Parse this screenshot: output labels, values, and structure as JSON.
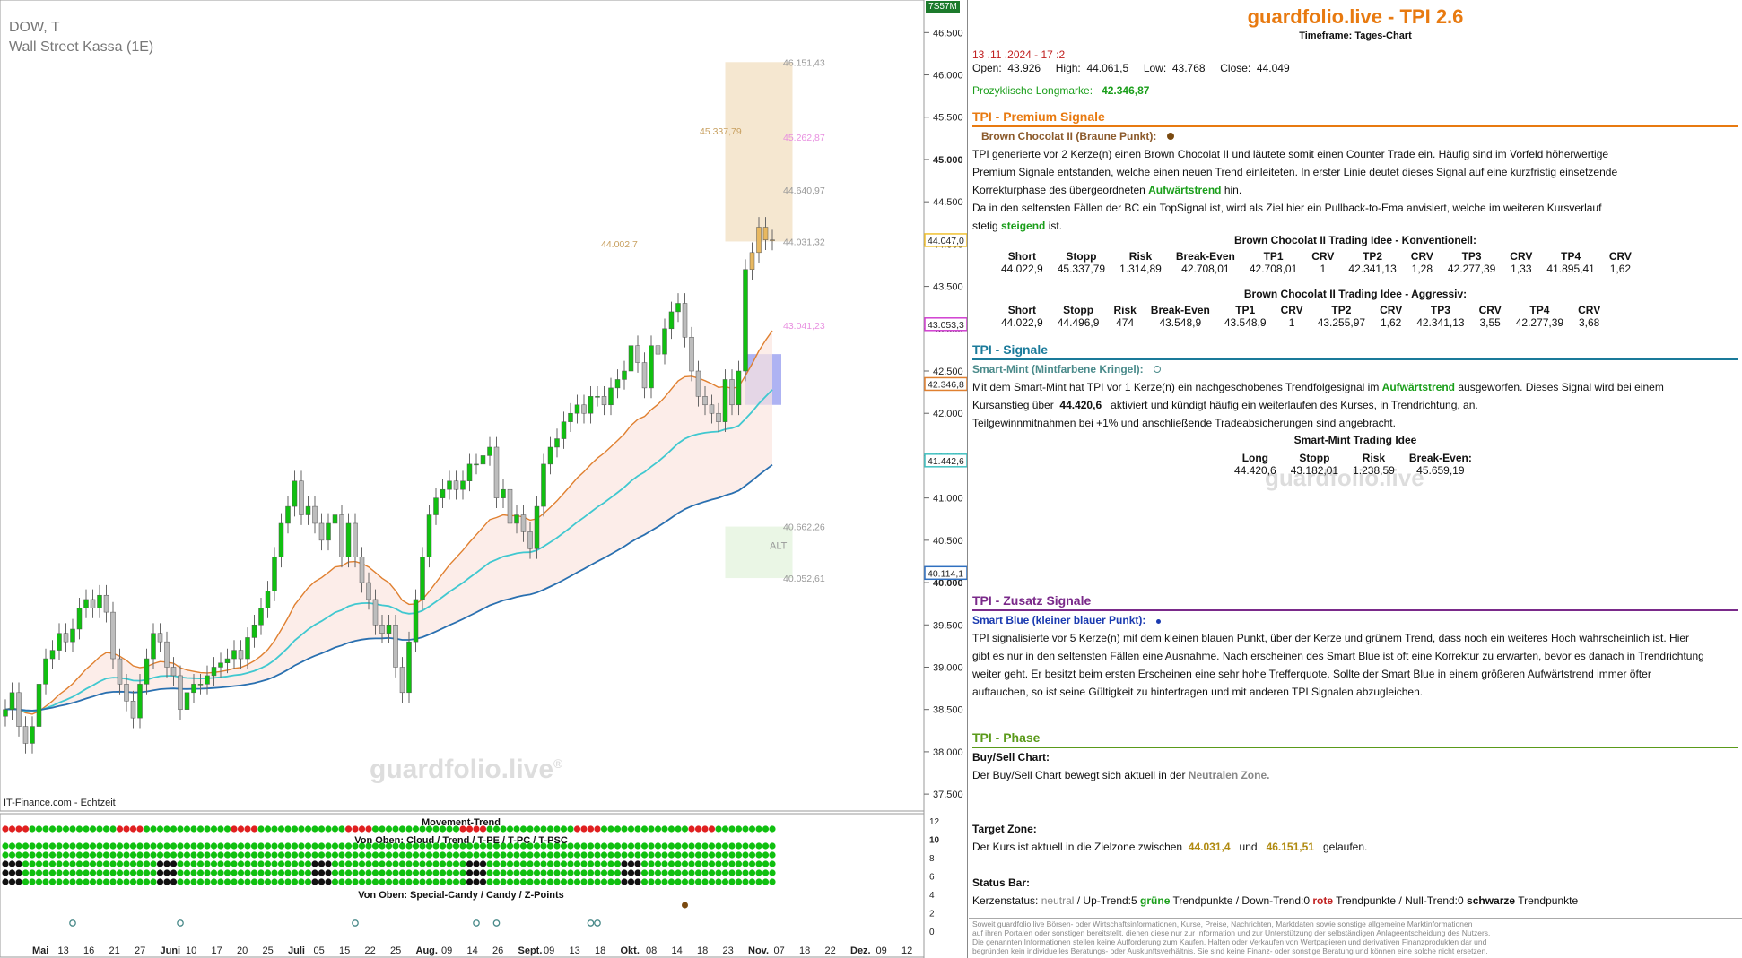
{
  "chart_header": {
    "symbol": "DOW, T",
    "instrument": "Wall Street Kassa (1E)",
    "badge": "7S57M",
    "watermark": "guardfolio.live",
    "watermark_sup": "®",
    "source": "IT-Finance.com - Echtzeit"
  },
  "chart_data": {
    "type": "candlestick",
    "title": "",
    "ylim": [
      37300,
      46800
    ],
    "y_ticks": [
      "46.500",
      "46.000",
      "45.500",
      "45.000",
      "44.500",
      "44.000",
      "43.500",
      "43.000",
      "42.500",
      "42.000",
      "41.500",
      "41.000",
      "40.500",
      "40.000",
      "39.500",
      "39.000",
      "38.500",
      "38.000",
      "37.500"
    ],
    "y_tick_values": [
      46500,
      46000,
      45500,
      45000,
      44500,
      44000,
      43500,
      43000,
      42500,
      42000,
      41500,
      41000,
      40500,
      40000,
      39500,
      39000,
      38500,
      38000,
      37500
    ],
    "x_labels": [
      "Mai",
      "13",
      "16",
      "21",
      "27",
      "Juni",
      "10",
      "17",
      "20",
      "25",
      "Juli",
      "05",
      "15",
      "22",
      "25",
      "Aug.",
      "09",
      "14",
      "26",
      "Sept.",
      "09",
      "13",
      "18",
      "Okt.",
      "08",
      "14",
      "18",
      "23",
      "Nov.",
      "07",
      "18",
      "22",
      "Dez.",
      "09",
      "12"
    ],
    "price_badges": [
      {
        "value": "44.047,0",
        "price": 44047,
        "color": "#f0c030"
      },
      {
        "value": "43.053,3",
        "price": 43053,
        "color": "#d040d0"
      },
      {
        "value": "42.346,8",
        "price": 42347,
        "color": "#e08030"
      },
      {
        "value": "41.442,6",
        "price": 41443,
        "color": "#40c0c0"
      },
      {
        "value": "40.114,1",
        "price": 40114,
        "color": "#3070c0"
      }
    ],
    "annotations": [
      {
        "text": "46.151,43",
        "price": 46151,
        "color": "#999999"
      },
      {
        "text": "45.337,79",
        "price": 45338,
        "color": "#c8a060"
      },
      {
        "text": "45.262,87",
        "price": 45263,
        "color": "#e890e0"
      },
      {
        "text": "44.640,97",
        "price": 44641,
        "color": "#999999"
      },
      {
        "text": "44.002,7",
        "price": 44003,
        "color": "#c8a060"
      },
      {
        "text": "44.031,32",
        "price": 44031,
        "color": "#999999"
      },
      {
        "text": "43.041,23",
        "price": 43041,
        "color": "#e890e0"
      },
      {
        "text": "40.662,26",
        "price": 40662,
        "color": "#999999"
      },
      {
        "text": "40.052,61",
        "price": 40053,
        "color": "#999999"
      }
    ],
    "zone_label": "ALT",
    "series": [
      {
        "name": "close",
        "values": [
          38500,
          38700,
          38300,
          38100,
          38300,
          38800,
          39100,
          39200,
          39400,
          39300,
          39450,
          39700,
          39800,
          39700,
          39850,
          39650,
          39100,
          38800,
          38600,
          38400,
          38800,
          39100,
          39400,
          39300,
          39000,
          38900,
          38500,
          38700,
          38800,
          38800,
          38900,
          39000,
          39050,
          39100,
          39200,
          39100,
          39350,
          39500,
          39700,
          39900,
          40300,
          40700,
          40900,
          41200,
          40800,
          40900,
          40700,
          40500,
          40700,
          40800,
          40300,
          40700,
          40300,
          40000,
          39800,
          39500,
          39400,
          39500,
          39000,
          38700,
          39300,
          39800,
          40300,
          40800,
          41000,
          41100,
          41200,
          41100,
          41200,
          41400,
          41400,
          41500,
          41600,
          41000,
          41100,
          40700,
          40800,
          40600,
          40400,
          40900,
          41400,
          41600,
          41700,
          41900,
          42000,
          42100,
          42000,
          42200,
          42200,
          42100,
          42300,
          42400,
          42500,
          42800,
          42600,
          42300,
          42800,
          42700,
          43000,
          43200,
          43300,
          42900,
          42500,
          42200,
          42100,
          42000,
          41900,
          42400,
          42100,
          42500,
          43700,
          43900,
          44200,
          44050,
          44047
        ]
      }
    ]
  },
  "indicators": {
    "movement_trend": "Movement-Trend",
    "cloud_row": "Von Oben: Cloud / Trend / T-PE / T-PC / T-PSC",
    "special_row": "Von Oben: Special-Candy / Candy / Z-Points",
    "right_ticks": [
      "12",
      "10",
      "8",
      "6",
      "4",
      "2",
      "0"
    ],
    "right_tick_values": [
      12,
      10,
      8,
      6,
      4,
      2,
      0
    ]
  },
  "info": {
    "title": "guardfolio.live - TPI 2.6",
    "timeframe": "Timeframe: Tages-Chart",
    "datetime": "13 .11 .2024 - 17 :2",
    "ohlc": {
      "open_label": "Open:",
      "open": "43.926",
      "high_label": "High:",
      "high": "44.061,5",
      "low_label": "Low:",
      "low": "43.768",
      "close_label": "Close:",
      "close": "44.049"
    },
    "longmark_label": "Prozyklische Longmarke:",
    "longmark_value": "42.346,87",
    "premium": {
      "head": "TPI - Premium Signale",
      "sub": "Brown Chocolat II (Braune Punkt):",
      "p1a": "TPI generierte vor 2  Kerze(n) einen Brown Chocolat II und läutete somit einen Counter Trade ein. Häufig sind im Vorfeld höherwertige",
      "p1b": "Premium Signale entstanden, welche einen neuen Trend einleiteten. In erster Linie deutet dieses Signal auf eine kurzfristig einsetzende",
      "p1c_pre": "Korrekturphase des übergeordneten",
      "p1c_em": "Aufwärtstrend",
      "p1c_post": "hin.",
      "p1d": "Da in den seltensten Fällen der BC ein TopSignal ist, wird als Ziel hier ein Pullback-to-Ema anvisiert, welche im weiteren Kursverlauf",
      "p1e_pre": "stetig",
      "p1e_em": "steigend",
      "p1e_post": "ist.",
      "t1_title": "Brown Chocolat II Trading Idee - Konventionell:",
      "t2_title": "Brown Chocolat II Trading Idee - Aggressiv:",
      "cols": [
        "Short",
        "Stopp",
        "Risk",
        "Break-Even",
        "TP1",
        "CRV",
        "TP2",
        "CRV",
        "TP3",
        "CRV",
        "TP4",
        "CRV"
      ],
      "t1_vals": [
        "44.022,9",
        "45.337,79",
        "1.314,89",
        "42.708,01",
        "42.708,01",
        "1",
        "42.341,13",
        "1,28",
        "42.277,39",
        "1,33",
        "41.895,41",
        "1,62"
      ],
      "t2_vals": [
        "44.022,9",
        "44.496,9",
        "474",
        "43.548,9",
        "43.548,9",
        "1",
        "43.255,97",
        "1,62",
        "42.341,13",
        "3,55",
        "42.277,39",
        "3,68"
      ]
    },
    "signale": {
      "head": "TPI - Signale",
      "sub": "Smart-Mint (Mintfarbene Kringel):",
      "p1_pre": "Mit dem Smart-Mint hat TPI vor 1  Kerze(n) ein nachgeschobenes Trendfolgesignal im",
      "p1_em": "Aufwärtstrend",
      "p1_post": "ausgeworfen. Dieses Signal wird bei einem",
      "p2_pre": "Kursanstieg über",
      "p2_val": "44.420,6",
      "p2_post": "aktiviert und kündigt häufig ein weiterlaufen des Kurses, in Trendrichtung, an.",
      "p3": "Teilgewinnmitnahmen bei +1% und anschließende Tradeabsicherungen sind angebracht.",
      "t_title": "Smart-Mint Trading Idee",
      "cols": [
        "Long",
        "Stopp",
        "Risk",
        "Break-Even:"
      ],
      "vals": [
        "44.420,6",
        "43.182,01",
        "1.238,59",
        "45.659,19"
      ],
      "watermark": "guardfolio.live"
    },
    "zusatz": {
      "head": "TPI - Zusatz Signale",
      "sub": "Smart Blue (kleiner blauer Punkt):",
      "p1": "TPI signalisierte vor 5  Kerze(n) mit dem kleinen blauen Punkt, über der Kerze und grünem Trend, dass noch ein weiteres Hoch wahrscheinlich ist. Hier",
      "p2": "gibt es nur in den seltensten Fällen eine Ausnahme. Nach erscheinen des Smart Blue ist oft eine Korrektur zu erwarten, bevor es danach in Trendrichtung",
      "p3": "weiter geht. Er besitzt beim ersten Erscheinen eine sehr hohe Trefferquote. Sollte der Smart Blue in einem größeren Aufwärtstrend immer öfter",
      "p4": "auftauchen, so ist seine Gültigkeit zu hinterfragen und mit anderen TPI Signalen abzugleichen."
    },
    "phase": {
      "head": "TPI - Phase",
      "bs_label": "Buy/Sell Chart:",
      "bs_pre": "Der Buy/Sell Chart bewegt sich aktuell in der",
      "bs_em": "Neutralen Zone.",
      "tz_label": "Target Zone:",
      "tz_pre": "Der Kurs ist aktuell in die Zielzone zwischen",
      "tz_v1": "44.031,4",
      "tz_mid": "und",
      "tz_v2": "46.151,51",
      "tz_post": "gelaufen.",
      "sb_label": "Status Bar:",
      "sb_1": "Kerzenstatus:",
      "sb_2": "neutral",
      "sb_3": "/ Up-Trend:5",
      "sb_4": "grüne",
      "sb_5": "Trendpunkte  / Down-Trend:0",
      "sb_6": "rote",
      "sb_7": "Trendpunkte / Null-Trend:0",
      "sb_8": "schwarze",
      "sb_9": "Trendpunkte"
    },
    "disclaimer": [
      "Soweit guardfolio live Börsen- oder Wirtschaftsinformationen, Kurse, Preise, Nachrichten, Marktdaten sowie sonstige allgemeine Marktinformationen",
      "auf ihren Portalen oder sonstigen bereitstellt, dienen diese nur zur Information und zur Unterstützung der selbständigen Anlageentscheidung des Nutzers.",
      "Die genannten Informationen stellen keine Aufforderung zum Kaufen, Halten oder Verkaufen von Wertpapieren und derivativen Finanzprodukten dar und",
      "begründen kein individuelles Beratungs- oder Auskunftsverhältnis. Sie sind keine Finanz- oder sonstige Beratung und können eine solche nicht ersetzen."
    ]
  }
}
